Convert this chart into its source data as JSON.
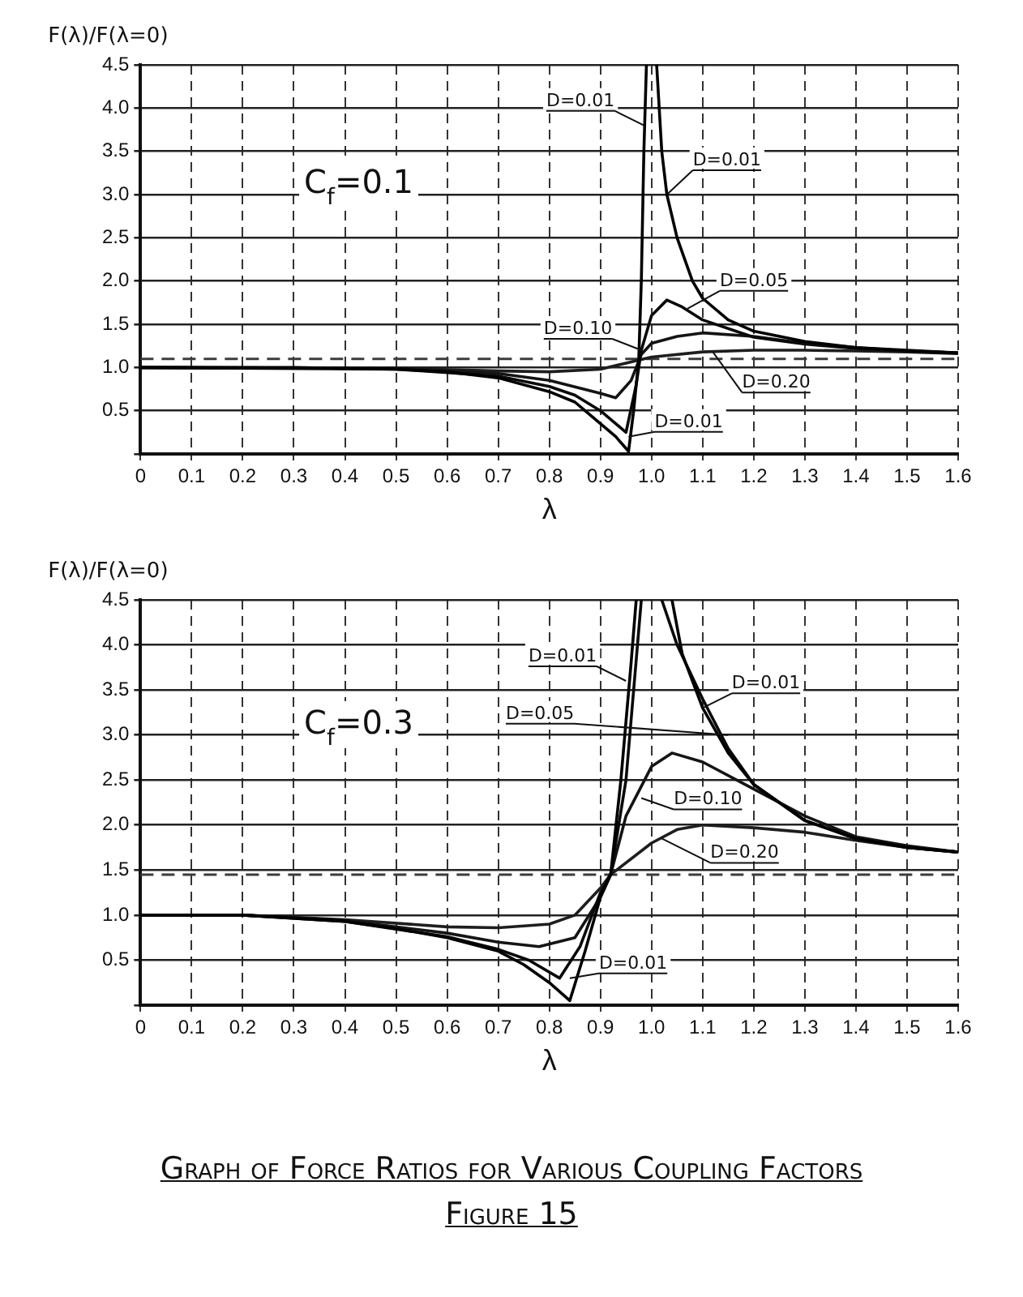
{
  "chart_data": [
    {
      "type": "line",
      "ylabel": "F(λ)/F(λ=0)",
      "xlabel": "λ",
      "xlim": [
        0,
        1.6
      ],
      "ylim": [
        0,
        4.5
      ],
      "xticks": [
        0,
        0.1,
        0.2,
        0.3,
        0.4,
        0.5,
        0.6,
        0.7,
        0.8,
        0.9,
        {
          "value": 1,
          "label": "1.0"
        },
        1.1,
        1.2,
        1.3,
        1.4,
        1.5,
        1.6
      ],
      "yticks": [
        {
          "value": 0,
          "label": null
        },
        0.5,
        {
          "value": 1,
          "label": "1.0"
        },
        1.5,
        {
          "value": 2,
          "label": "2.0"
        },
        2.5,
        {
          "value": 3,
          "label": "3.0"
        },
        3.5,
        {
          "value": 4,
          "label": "4.0"
        },
        4.5
      ],
      "grid": true,
      "legend": false,
      "marker": "none",
      "line_style": "solid",
      "ref_lines": [
        {
          "axis": "y",
          "value": 1.1,
          "line_style": "dashed",
          "color": "#3c3c3c"
        }
      ],
      "annotations": [
        "C$_{f}$=0.1",
        {
          "text": "D=0.01",
          "x": 0.985,
          "y": 3.8
        },
        {
          "text": "D=0.01",
          "x": 1.03,
          "y": 3.0
        },
        {
          "text": "D=0.05",
          "x": 1.07,
          "y": 1.68
        },
        {
          "text": "D=0.10",
          "x": 0.98,
          "y": 1.2
        },
        {
          "text": "D=0.20",
          "x": 1.12,
          "y": 1.18
        },
        {
          "text": "D=0.01",
          "x": 0.955,
          "y": 0.2
        }
      ],
      "series": [
        {
          "color": "#000000",
          "x": [
            0,
            0.3,
            0.5,
            0.6,
            0.7,
            0.8,
            0.85,
            0.9,
            0.93,
            0.955,
            0.965,
            0.975,
            0.98,
            0.985,
            0.99,
            1.0,
            1.01,
            1.02,
            1.03,
            1.05,
            1.08,
            1.1,
            1.15,
            1.2,
            1.3,
            1.4,
            1.5,
            1.6
          ],
          "values": [
            1.0,
            1.0,
            0.98,
            0.95,
            0.88,
            0.72,
            0.6,
            0.35,
            0.2,
            0.03,
            0.5,
            1.1,
            2.0,
            3.5,
            4.5,
            null,
            4.5,
            3.5,
            3.0,
            2.5,
            2.0,
            1.8,
            1.55,
            1.42,
            1.3,
            1.23,
            1.2,
            1.17
          ]
        },
        {
          "color": "#0a0a0a",
          "x": [
            0,
            0.5,
            0.7,
            0.8,
            0.85,
            0.9,
            0.95,
            0.97,
            0.98,
            1.0,
            1.03,
            1.06,
            1.1,
            1.2,
            1.3,
            1.4,
            1.5,
            1.6
          ],
          "values": [
            1.0,
            0.98,
            0.9,
            0.78,
            0.68,
            0.5,
            0.25,
            0.8,
            1.2,
            1.6,
            1.78,
            1.7,
            1.55,
            1.35,
            1.27,
            1.22,
            1.19,
            1.17
          ]
        },
        {
          "color": "#141414",
          "x": [
            0,
            0.5,
            0.7,
            0.8,
            0.9,
            0.93,
            0.96,
            0.98,
            1.0,
            1.05,
            1.1,
            1.2,
            1.3,
            1.4,
            1.5,
            1.6
          ],
          "values": [
            1.0,
            0.99,
            0.93,
            0.85,
            0.7,
            0.65,
            0.85,
            1.15,
            1.28,
            1.36,
            1.4,
            1.36,
            1.28,
            1.23,
            1.19,
            1.17
          ]
        },
        {
          "color": "#1e1e1e",
          "x": [
            0,
            0.5,
            0.7,
            0.8,
            0.9,
            0.95,
            1.0,
            1.1,
            1.2,
            1.3,
            1.4,
            1.5,
            1.6
          ],
          "values": [
            1.0,
            0.99,
            0.96,
            0.95,
            0.98,
            1.05,
            1.12,
            1.18,
            1.2,
            1.2,
            1.19,
            1.18,
            1.16
          ]
        }
      ]
    },
    {
      "type": "line",
      "title": "Graph of Force Ratios for Various Coupling Factors",
      "subtitle": "Figure 15",
      "ylabel": "F(λ)/F(λ=0)",
      "xlabel": "λ",
      "xlim": [
        0,
        1.6
      ],
      "ylim": [
        0,
        4.5
      ],
      "xticks": [
        0,
        0.1,
        0.2,
        0.3,
        0.4,
        0.5,
        0.6,
        0.7,
        0.8,
        0.9,
        {
          "value": 1,
          "label": "1.0"
        },
        1.1,
        1.2,
        1.3,
        1.4,
        1.5,
        1.6
      ],
      "yticks": [
        {
          "value": 0,
          "label": null
        },
        0.5,
        {
          "value": 1,
          "label": "1.0"
        },
        1.5,
        {
          "value": 2,
          "label": "2.0"
        },
        2.5,
        {
          "value": 3,
          "label": "3.0"
        },
        3.5,
        {
          "value": 4,
          "label": "4.0"
        },
        4.5
      ],
      "grid": true,
      "legend": false,
      "marker": "none",
      "line_style": "solid",
      "ref_lines": [
        {
          "axis": "y",
          "value": 1.45,
          "line_style": "dashed",
          "color": "#3c3c3c"
        }
      ],
      "annotations": [
        "C$_{f}$=0.3",
        {
          "text": "D=0.01",
          "x": 0.95,
          "y": 3.6
        },
        {
          "text": "D=0.01",
          "x": 1.1,
          "y": 3.3
        },
        {
          "text": "D=0.05",
          "x": 1.15,
          "y": 3.0
        },
        {
          "text": "D=0.10",
          "x": 0.98,
          "y": 2.3
        },
        {
          "text": "D=0.20",
          "x": 1.02,
          "y": 1.85
        },
        {
          "text": "D=0.01",
          "x": 0.84,
          "y": 0.3
        }
      ],
      "series": [
        {
          "color": "#000000",
          "x": [
            0,
            0.2,
            0.4,
            0.5,
            0.6,
            0.7,
            0.75,
            0.8,
            0.84,
            0.87,
            0.9,
            0.92,
            0.94,
            0.96,
            0.97,
            1.0,
            1.04,
            1.06,
            1.1,
            1.15,
            1.2,
            1.3,
            1.4,
            1.5,
            1.6
          ],
          "values": [
            1.0,
            1.0,
            0.93,
            0.85,
            0.75,
            0.6,
            0.45,
            0.25,
            0.05,
            0.6,
            1.2,
            1.45,
            2.5,
            3.8,
            4.5,
            null,
            4.5,
            3.9,
            3.3,
            2.8,
            2.45,
            2.05,
            1.85,
            1.75,
            1.7
          ]
        },
        {
          "color": "#0a0a0a",
          "x": [
            0,
            0.2,
            0.4,
            0.6,
            0.7,
            0.76,
            0.82,
            0.86,
            0.9,
            0.92,
            0.95,
            0.98,
            1.0,
            1.02,
            1.05,
            1.1,
            1.15,
            1.2,
            1.3,
            1.4,
            1.5,
            1.6
          ],
          "values": [
            1.0,
            1.0,
            0.93,
            0.76,
            0.62,
            0.5,
            0.3,
            0.65,
            1.25,
            1.45,
            2.5,
            4.5,
            null,
            4.5,
            4.0,
            3.4,
            2.85,
            2.45,
            2.05,
            1.85,
            1.75,
            1.7
          ]
        },
        {
          "color": "#141414",
          "x": [
            0,
            0.2,
            0.4,
            0.6,
            0.7,
            0.78,
            0.85,
            0.9,
            0.92,
            0.95,
            1.0,
            1.04,
            1.1,
            1.2,
            1.3,
            1.4,
            1.5,
            1.6
          ],
          "values": [
            1.0,
            1.0,
            0.94,
            0.8,
            0.7,
            0.65,
            0.75,
            1.2,
            1.45,
            2.1,
            2.65,
            2.8,
            2.7,
            2.4,
            2.1,
            1.87,
            1.77,
            1.7
          ]
        },
        {
          "color": "#1e1e1e",
          "x": [
            0,
            0.2,
            0.4,
            0.6,
            0.7,
            0.8,
            0.85,
            0.9,
            0.92,
            1.0,
            1.05,
            1.1,
            1.2,
            1.3,
            1.4,
            1.5,
            1.6
          ],
          "values": [
            1.0,
            1.0,
            0.95,
            0.87,
            0.86,
            0.9,
            1.0,
            1.3,
            1.45,
            1.8,
            1.95,
            2.0,
            1.97,
            1.92,
            1.83,
            1.75,
            1.7
          ]
        }
      ]
    }
  ]
}
